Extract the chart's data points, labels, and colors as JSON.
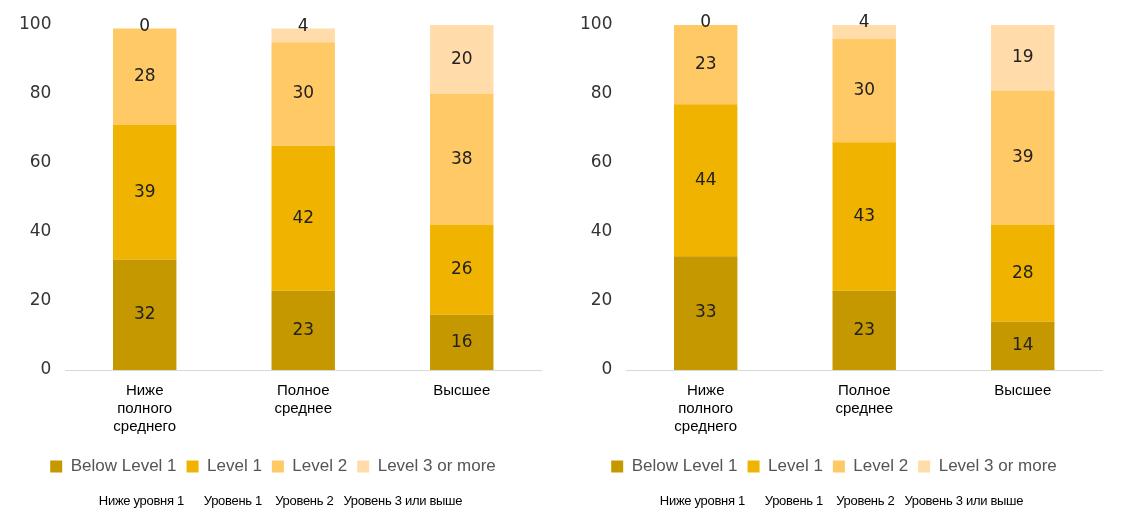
{
  "chart_data": [
    {
      "type": "bar",
      "stacked": true,
      "categories": [
        "Ниже полного среднего",
        "Полное среднее",
        "Высшее"
      ],
      "series": [
        {
          "name": "Below Level 1",
          "color": "#c59800",
          "values": [
            32,
            23,
            16
          ]
        },
        {
          "name": "Level 1",
          "color": "#f0b400",
          "values": [
            39,
            42,
            26
          ]
        },
        {
          "name": "Level 2",
          "color": "#ffc966",
          "values": [
            28,
            30,
            38
          ]
        },
        {
          "name": "Level 3 or more",
          "color": "#ffdcaa",
          "values": [
            0,
            4,
            20
          ]
        }
      ],
      "ylim": [
        0,
        100
      ],
      "yticks": [
        0,
        20,
        40,
        60,
        80,
        100
      ],
      "grid": false,
      "legend": "bottom",
      "data_labels": true,
      "annotations": [
        "Ниже уровня 1      Уровень 1    Уровень 2   Уровень 3 или выше"
      ]
    },
    {
      "type": "bar",
      "stacked": true,
      "categories": [
        "Ниже полного среднего",
        "Полное среднее",
        "Высшее"
      ],
      "series": [
        {
          "name": "Below Level 1",
          "color": "#c59800",
          "values": [
            33,
            23,
            14
          ]
        },
        {
          "name": "Level 1",
          "color": "#f0b400",
          "values": [
            44,
            43,
            28
          ]
        },
        {
          "name": "Level 2",
          "color": "#ffc966",
          "values": [
            23,
            30,
            39
          ]
        },
        {
          "name": "Level 3 or more",
          "color": "#ffdcaa",
          "values": [
            0,
            4,
            19
          ]
        }
      ],
      "ylim": [
        0,
        100
      ],
      "yticks": [
        0,
        20,
        40,
        60,
        80,
        100
      ],
      "grid": false,
      "legend": "bottom",
      "data_labels": true,
      "annotations": [
        "Ниже уровня 1      Уровень 1    Уровень 2   Уровень 3 или выше"
      ]
    }
  ]
}
